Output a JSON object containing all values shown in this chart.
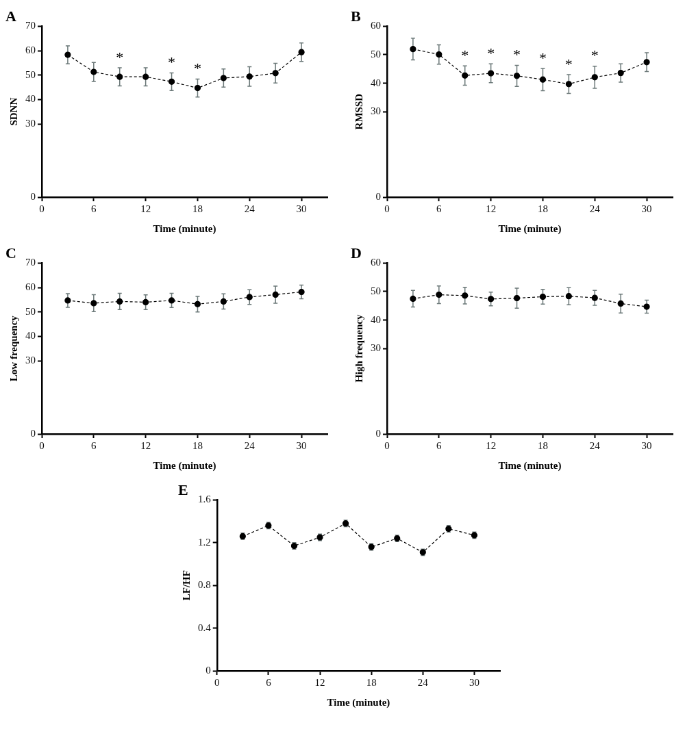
{
  "chart_data": [
    {
      "type": "line",
      "title": "A",
      "xlabel": "Time (minute)",
      "ylabel": "SDNN",
      "x": [
        3,
        6,
        9,
        12,
        15,
        18,
        21,
        24,
        27,
        30
      ],
      "values": [
        58.3,
        51.3,
        49.3,
        49.3,
        47.3,
        44.7,
        48.8,
        49.4,
        50.8,
        59.4
      ],
      "errors": [
        3.7,
        3.9,
        3.7,
        3.7,
        3.6,
        3.7,
        3.7,
        4,
        4,
        3.8
      ],
      "color": "#000000",
      "marker": "circle",
      "line_style": "dashed",
      "legend": false,
      "xlim": [
        0,
        33
      ],
      "xticks": [
        0,
        6,
        12,
        18,
        24,
        30
      ],
      "ylim": [
        0,
        70
      ],
      "yticks": [
        0,
        30,
        40,
        50,
        60,
        70
      ],
      "annotations": [
        {
          "text": "*",
          "x": 9,
          "y": 49.3
        },
        {
          "text": "*",
          "x": 15,
          "y": 47.3
        },
        {
          "text": "*",
          "x": 18,
          "y": 44.7
        }
      ]
    },
    {
      "type": "line",
      "title": "B",
      "xlabel": "Time (minute)",
      "ylabel": "RMSSD",
      "x": [
        3,
        6,
        9,
        12,
        15,
        18,
        21,
        24,
        27,
        30
      ],
      "values": [
        52.0,
        50.1,
        42.7,
        43.5,
        42.6,
        41.3,
        39.7,
        42.1,
        43.6,
        47.4
      ],
      "errors": [
        3.8,
        3.4,
        3.4,
        3.3,
        3.7,
        3.9,
        3.3,
        3.9,
        3.2,
        3.3
      ],
      "color": "#000000",
      "marker": "circle",
      "line_style": "dashed",
      "legend": false,
      "xlim": [
        0,
        33
      ],
      "xticks": [
        0,
        6,
        12,
        18,
        24,
        30
      ],
      "ylim": [
        0,
        60
      ],
      "yticks": [
        0,
        30,
        40,
        50,
        60
      ],
      "annotations": [
        {
          "text": "*",
          "x": 9,
          "y": 42.7
        },
        {
          "text": "*",
          "x": 12,
          "y": 43.5
        },
        {
          "text": "*",
          "x": 15,
          "y": 42.6
        },
        {
          "text": "*",
          "x": 18,
          "y": 41.3
        },
        {
          "text": "*",
          "x": 21,
          "y": 39.7
        },
        {
          "text": "*",
          "x": 24,
          "y": 42.1
        }
      ]
    },
    {
      "type": "line",
      "title": "C",
      "xlabel": "Time (minute)",
      "ylabel": "Low frequency",
      "x": [
        3,
        6,
        9,
        12,
        15,
        18,
        21,
        24,
        27,
        30
      ],
      "values": [
        54.7,
        53.6,
        54.3,
        54.0,
        54.7,
        53.2,
        54.3,
        56.1,
        57.1,
        58.2
      ],
      "errors": [
        2.8,
        3.5,
        3.3,
        3.0,
        2.9,
        3.2,
        3.1,
        3.0,
        3.5,
        2.8
      ],
      "color": "#000000",
      "marker": "circle",
      "line_style": "dashed",
      "legend": false,
      "xlim": [
        0,
        33
      ],
      "xticks": [
        0,
        6,
        12,
        18,
        24,
        30
      ],
      "ylim": [
        0,
        70
      ],
      "yticks": [
        0,
        30,
        40,
        50,
        60,
        70
      ]
    },
    {
      "type": "line",
      "title": "D",
      "xlabel": "Time (minute)",
      "ylabel": "High frequency",
      "x": [
        3,
        6,
        9,
        12,
        15,
        18,
        21,
        24,
        27,
        30
      ],
      "values": [
        47.5,
        48.9,
        48.6,
        47.4,
        47.7,
        48.2,
        48.4,
        47.8,
        45.8,
        44.7
      ],
      "errors": [
        2.9,
        3.1,
        2.9,
        2.4,
        3.5,
        2.6,
        3.0,
        2.6,
        3.3,
        2.3
      ],
      "color": "#000000",
      "marker": "circle",
      "line_style": "dashed",
      "legend": false,
      "xlim": [
        0,
        33
      ],
      "xticks": [
        0,
        6,
        12,
        18,
        24,
        30
      ],
      "ylim": [
        0,
        60
      ],
      "yticks": [
        0,
        30,
        40,
        50,
        60
      ]
    },
    {
      "type": "line",
      "title": "E",
      "xlabel": "Time (minute)",
      "ylabel": "LF/HF",
      "x": [
        3,
        6,
        9,
        12,
        15,
        18,
        21,
        24,
        27,
        30
      ],
      "values": [
        1.26,
        1.36,
        1.17,
        1.25,
        1.38,
        1.16,
        1.24,
        1.11,
        1.33,
        1.27
      ],
      "errors": [
        0.03,
        0.03,
        0.03,
        0.03,
        0.03,
        0.03,
        0.03,
        0.03,
        0.03,
        0.03
      ],
      "color": "#000000",
      "marker": "circle",
      "line_style": "dashed",
      "legend": false,
      "xlim": [
        0,
        33
      ],
      "xticks": [
        0,
        6,
        12,
        18,
        24,
        30
      ],
      "ylim": [
        0,
        1.6
      ],
      "yticks": [
        0,
        0.4,
        0.8,
        1.2,
        1.6
      ]
    }
  ]
}
